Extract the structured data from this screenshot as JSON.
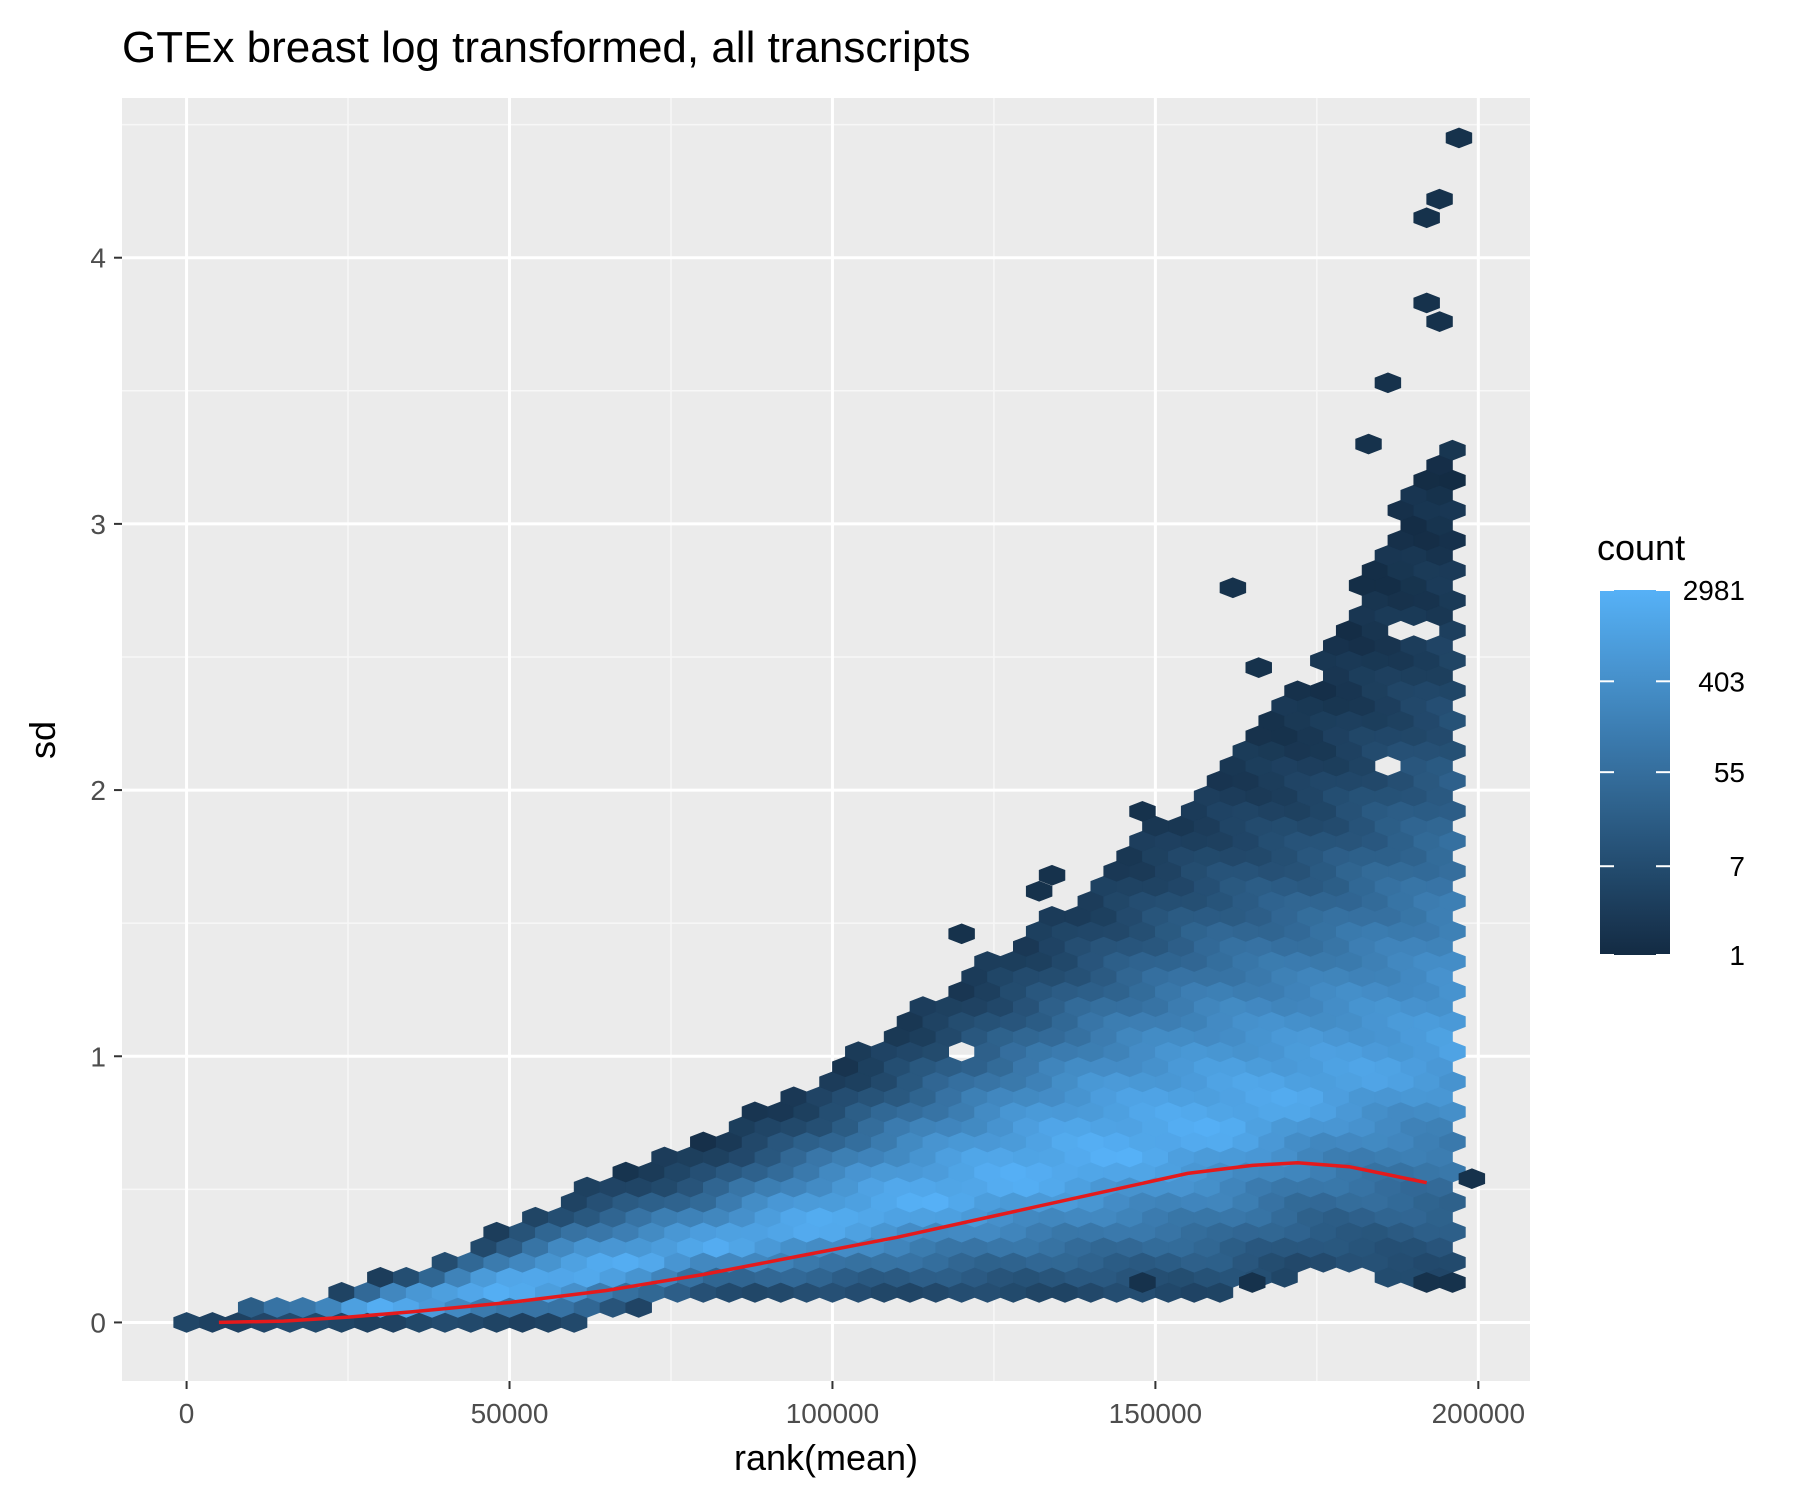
{
  "chart_data": {
    "type": "hexbin",
    "title": "GTEx breast log transformed, all transcripts",
    "xlabel": "rank(mean)",
    "ylabel": "sd",
    "xlim": [
      -10000,
      208000
    ],
    "ylim": [
      -0.22,
      4.6
    ],
    "x_ticks": [
      0,
      50000,
      100000,
      150000,
      200000
    ],
    "x_tick_labels": [
      "0",
      "50000",
      "100000",
      "150000",
      "200000"
    ],
    "y_ticks": [
      0,
      1,
      2,
      3,
      4
    ],
    "y_tick_labels": [
      "0",
      "1",
      "2",
      "3",
      "4"
    ],
    "grid": true,
    "legend": {
      "title": "count",
      "scale": "log",
      "position": "right",
      "range": [
        1,
        2981
      ],
      "breaks": [
        1,
        7,
        55,
        403,
        2981
      ],
      "break_labels": [
        "1",
        "7",
        "55",
        "403",
        "2981"
      ],
      "color_low": "#132b43",
      "color_high": "#56b1f7"
    },
    "density_profile": {
      "x": [
        0,
        20000,
        40000,
        60000,
        80000,
        100000,
        120000,
        140000,
        160000,
        175000,
        190000,
        197000
      ],
      "sd_low": [
        0,
        0,
        0,
        0,
        0.1,
        0.1,
        0.1,
        0.1,
        0.1,
        0.2,
        0.15,
        0.15
      ],
      "sd_high": [
        0.02,
        0.1,
        0.25,
        0.5,
        0.7,
        0.95,
        1.3,
        1.65,
        2.1,
        2.45,
        3.15,
        3.3
      ],
      "sd_center": [
        0,
        0.02,
        0.08,
        0.15,
        0.22,
        0.32,
        0.42,
        0.55,
        0.6,
        0.6,
        0.5,
        0.55
      ]
    },
    "outliers": [
      [
        162000,
        2.76
      ],
      [
        166000,
        2.46
      ],
      [
        148000,
        1.92
      ],
      [
        134000,
        1.68
      ],
      [
        132000,
        1.62
      ],
      [
        120000,
        1.46
      ],
      [
        183000,
        3.3
      ],
      [
        186000,
        3.53
      ],
      [
        192000,
        4.15
      ],
      [
        194000,
        4.22
      ],
      [
        197000,
        4.45
      ],
      [
        192000,
        3.83
      ],
      [
        194000,
        3.76
      ],
      [
        199000,
        0.54
      ],
      [
        148000,
        0.15
      ],
      [
        165000,
        0.15
      ],
      [
        192000,
        0.15
      ],
      [
        196000,
        0.15
      ]
    ],
    "hex_holes": [
      [
        119000,
        1.0
      ],
      [
        186000,
        2.08
      ],
      [
        190000,
        2.6
      ]
    ],
    "smooth_line": {
      "color": "#e41a1c",
      "x": [
        5000,
        15000,
        25000,
        35000,
        50000,
        65000,
        80000,
        95000,
        110000,
        125000,
        140000,
        155000,
        165000,
        172000,
        180000,
        187000,
        192000
      ],
      "y": [
        0,
        0.005,
        0.02,
        0.04,
        0.075,
        0.12,
        0.18,
        0.25,
        0.32,
        0.4,
        0.48,
        0.56,
        0.59,
        0.6,
        0.585,
        0.55,
        0.525
      ]
    }
  }
}
